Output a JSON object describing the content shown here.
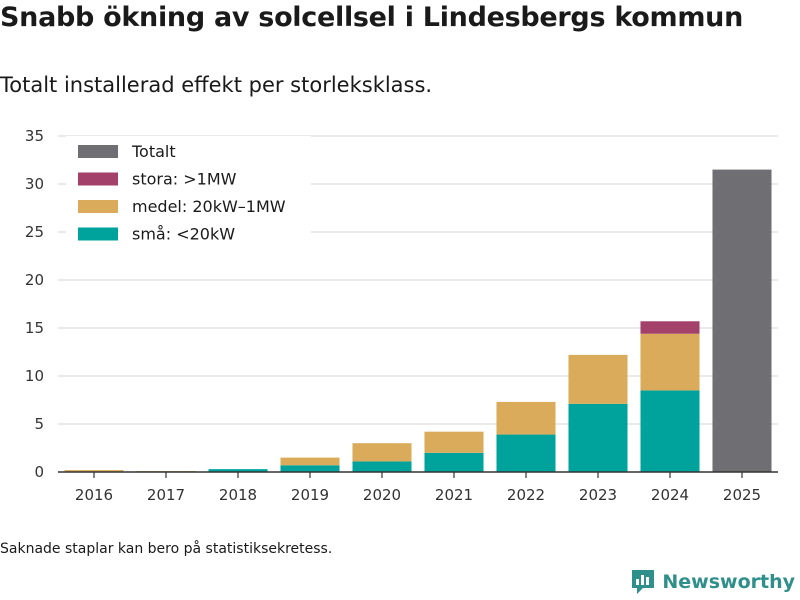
{
  "title": "Snabb ökning av solcellsel i Lindesbergs kommun",
  "subtitle": "Totalt installerad effekt per storleksklass.",
  "footnote": "Saknade staplar kan bero på statistiksekretess.",
  "brand": {
    "name": "Newsworthy",
    "icon": "newsworthy-logo-icon",
    "color": "#2f8f8a"
  },
  "chart_data": {
    "type": "bar",
    "stacked": true,
    "title": "",
    "xlabel": "",
    "ylabel": "",
    "ylim": [
      0,
      35
    ],
    "yticks": [
      0,
      5,
      10,
      15,
      20,
      25,
      30,
      35
    ],
    "grid": true,
    "legend_position": "top-left",
    "categories": [
      "2016",
      "2017",
      "2018",
      "2019",
      "2020",
      "2021",
      "2022",
      "2023",
      "2024",
      "2025"
    ],
    "series": [
      {
        "name": "små: <20kW",
        "color": "#00a39b",
        "values": [
          0.05,
          0.05,
          0.3,
          0.7,
          1.1,
          2.0,
          3.9,
          7.1,
          8.5,
          null
        ]
      },
      {
        "name": "medel: 20kW–1MW",
        "color": "#d9ab5a",
        "values": [
          0.15,
          0.05,
          0.0,
          0.8,
          1.9,
          2.2,
          3.4,
          5.1,
          5.9,
          null
        ]
      },
      {
        "name": "stora: >1MW",
        "color": "#a3416b",
        "values": [
          null,
          null,
          null,
          null,
          null,
          null,
          null,
          null,
          1.3,
          null
        ]
      },
      {
        "name": "Totalt",
        "color": "#6e6e73",
        "values": [
          null,
          null,
          null,
          null,
          null,
          null,
          null,
          null,
          null,
          31.5
        ]
      }
    ],
    "legend_order": [
      "Totalt",
      "stora: >1MW",
      "medel: 20kW–1MW",
      "små: <20kW"
    ]
  }
}
